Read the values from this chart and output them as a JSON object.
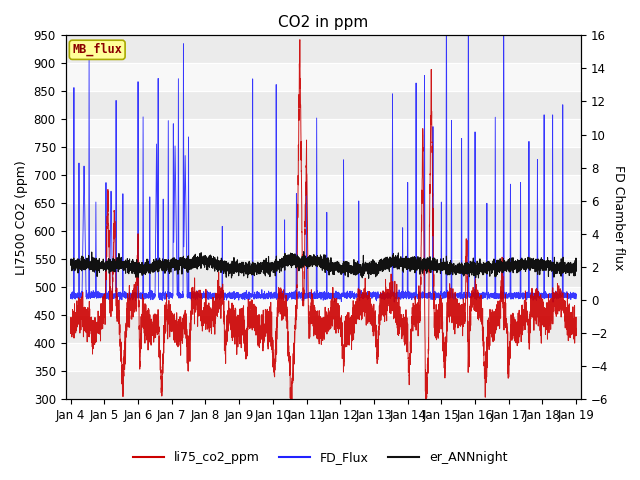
{
  "title": "CO2 in ppm",
  "ylabel_left": "LI7500 CO2 (ppm)",
  "ylabel_right": "FD Chamber flux",
  "xlim_days": [
    3.85,
    19.15
  ],
  "ylim_left": [
    300,
    950
  ],
  "ylim_right": [
    -6,
    16
  ],
  "yticks_left": [
    300,
    350,
    400,
    450,
    500,
    550,
    600,
    650,
    700,
    750,
    800,
    850,
    900,
    950
  ],
  "yticks_right": [
    -6,
    -4,
    -2,
    0,
    2,
    4,
    6,
    8,
    10,
    12,
    14,
    16
  ],
  "xtick_labels": [
    "Jan 4",
    "Jan 5",
    "Jan 6",
    "Jan 7",
    "Jan 8",
    "Jan 9",
    "Jan 10",
    "Jan 11",
    "Jan 12",
    "Jan 13",
    "Jan 14",
    "Jan 15",
    "Jan 16",
    "Jan 17",
    "Jan 18",
    "Jan 19"
  ],
  "xtick_positions": [
    4,
    5,
    6,
    7,
    8,
    9,
    10,
    11,
    12,
    13,
    14,
    15,
    16,
    17,
    18,
    19
  ],
  "color_red": "#cc0000",
  "color_blue": "#2222ff",
  "color_black": "#111111",
  "color_bg_fig": "#ffffff",
  "color_grid": "#ffffff",
  "color_band_light": "#ebebeb",
  "color_band_white": "#f8f8f8",
  "MB_flux_label": "MB_flux",
  "legend_labels": [
    "li75_co2_ppm",
    "FD_Flux",
    "er_ANNnight"
  ],
  "seed": 42,
  "n_points": 5000,
  "title_fontsize": 11,
  "label_fontsize": 9,
  "tick_fontsize": 8.5
}
